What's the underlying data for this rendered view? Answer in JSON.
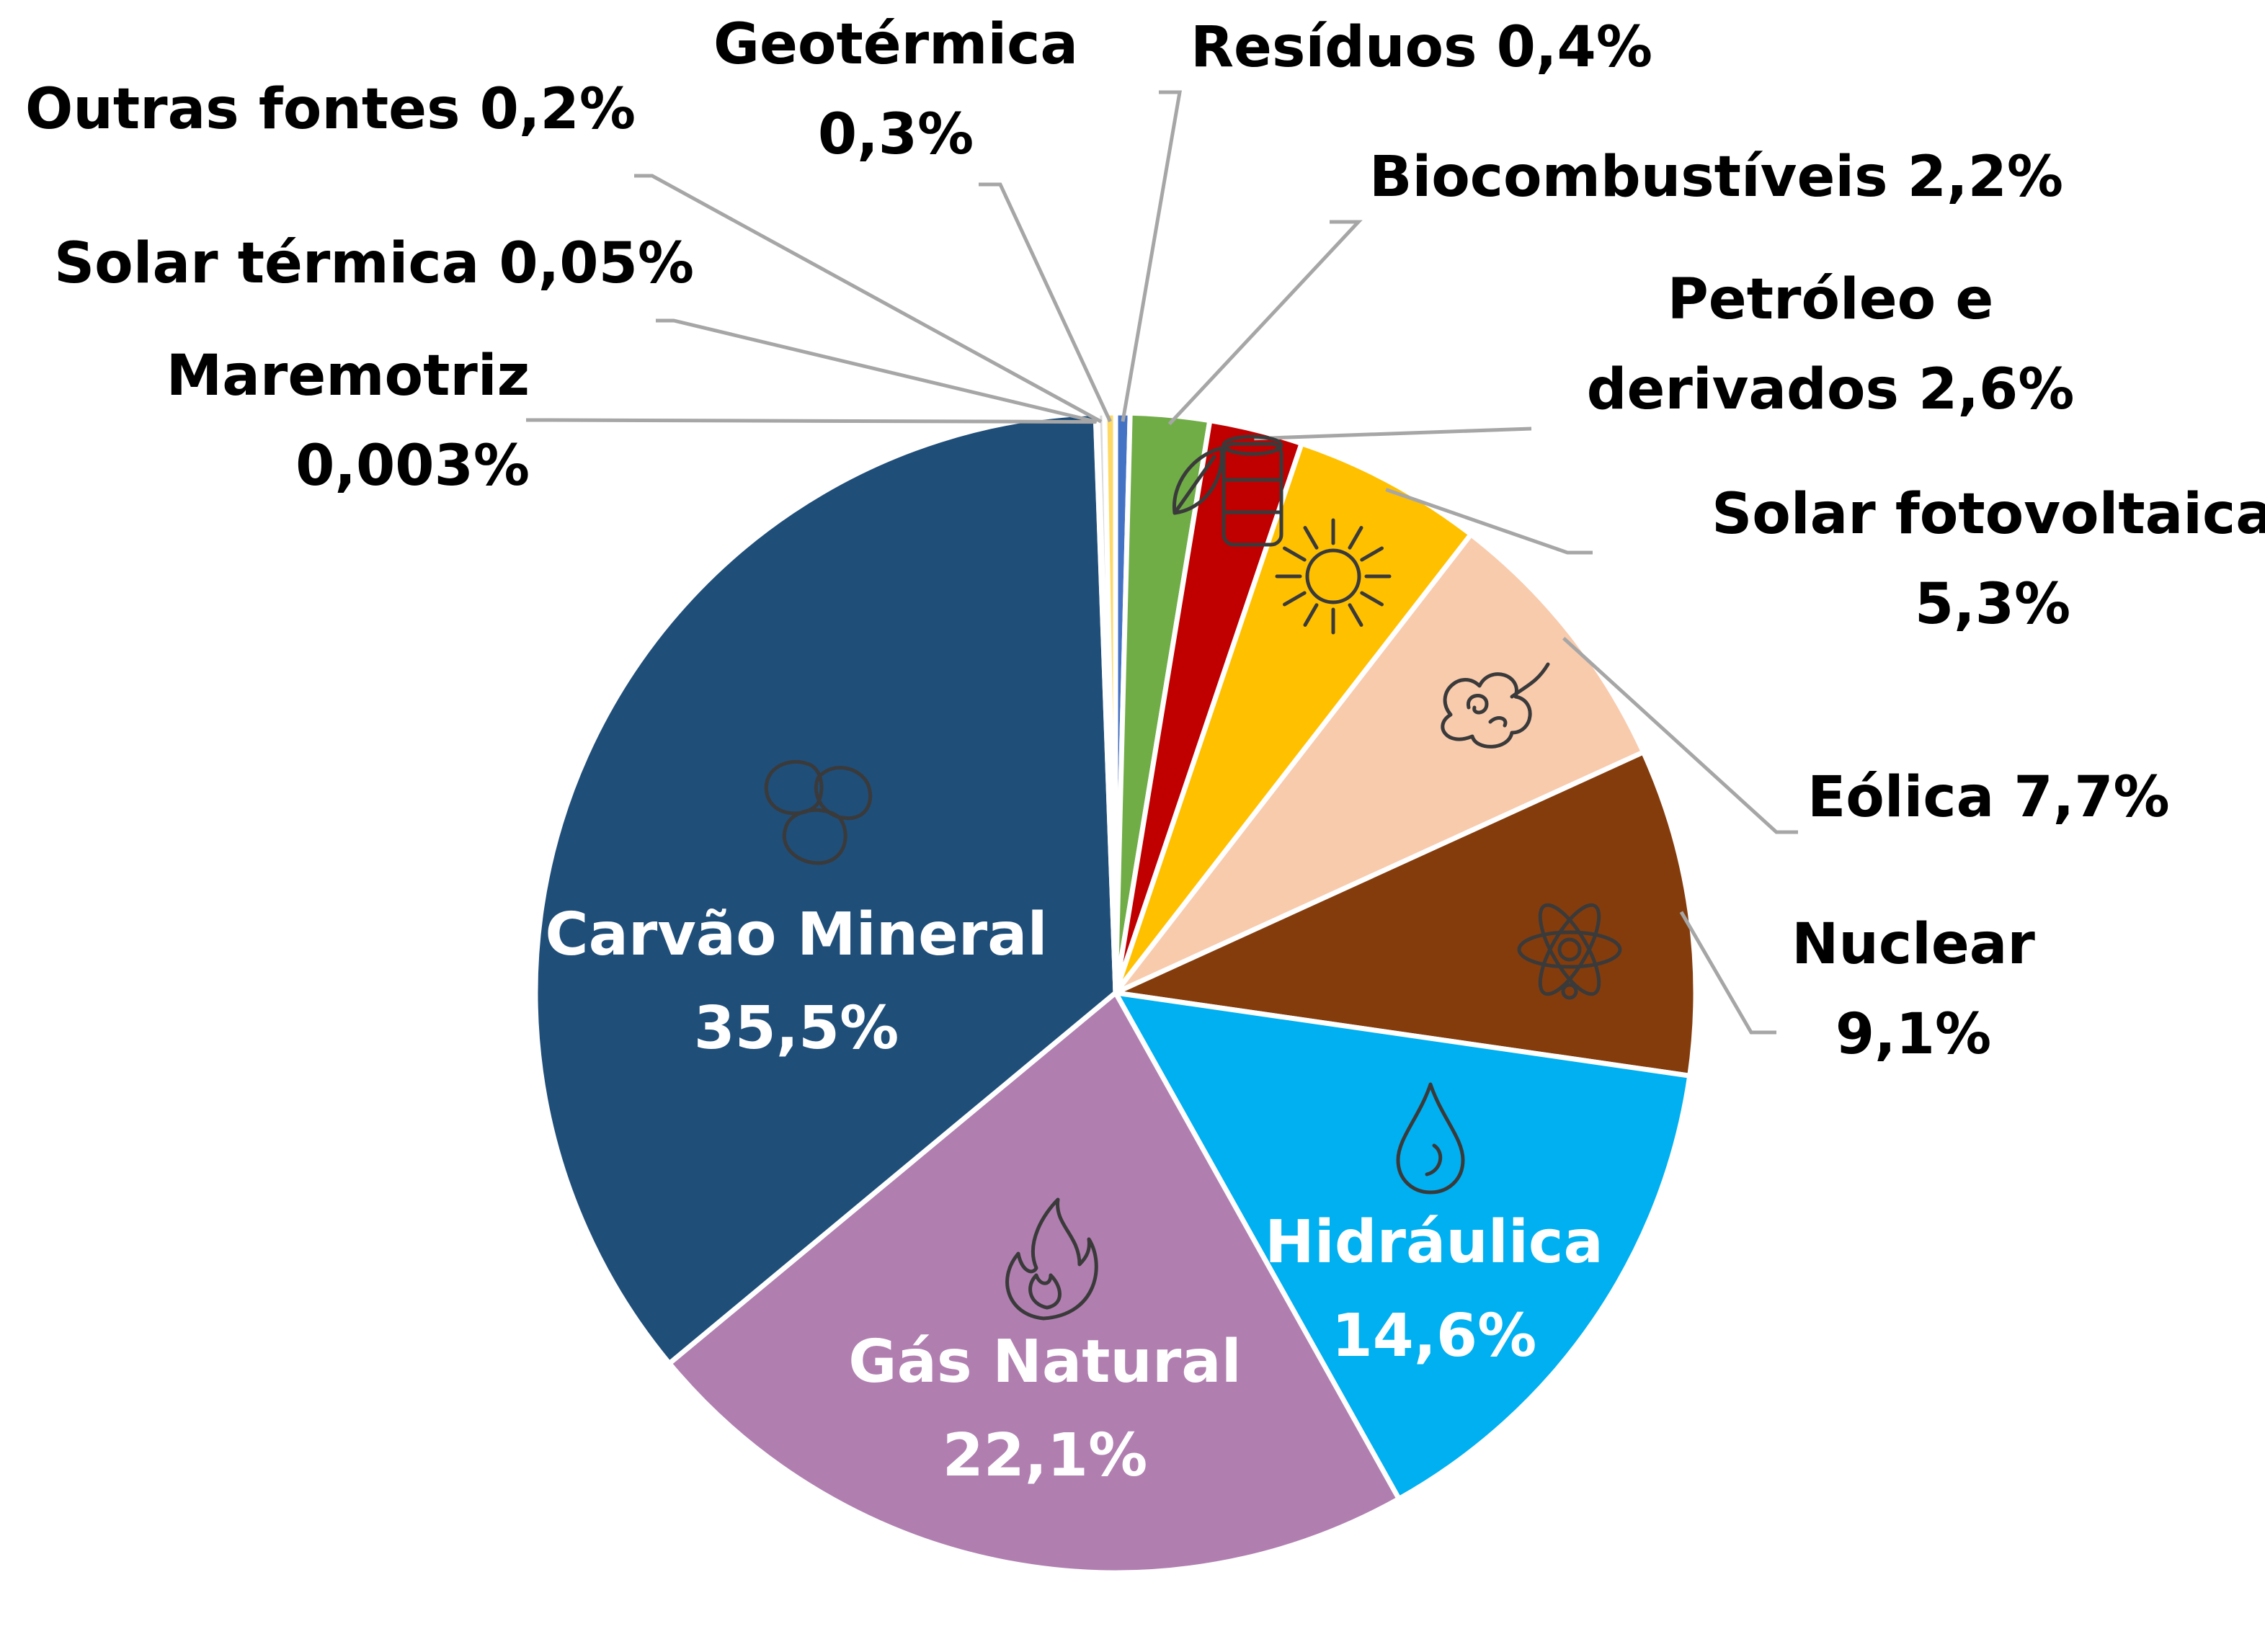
{
  "chart_data": {
    "type": "pie",
    "start_angle": "12 o'clock, clockwise",
    "slices": [
      {
        "name": "Resíduos",
        "value": 0.4,
        "label": "0,4%",
        "color": "#4472c4",
        "label_position": "outside"
      },
      {
        "name": "Biocombustíveis",
        "value": 2.2,
        "label": "2,2%",
        "color": "#70ad47",
        "label_position": "outside",
        "icon": "leaf-icon"
      },
      {
        "name": "Petróleo e derivados",
        "value": 2.6,
        "label": "2,6%",
        "color": "#c00000",
        "label_position": "outside",
        "icon": "barrel-icon"
      },
      {
        "name": "Solar fotovoltaica",
        "value": 5.3,
        "label": "5,3%",
        "color": "#ffc000",
        "label_position": "outside",
        "icon": "sun-icon"
      },
      {
        "name": "Eólica",
        "value": 7.7,
        "label": "7,7%",
        "color": "#f8cbad",
        "label_position": "outside",
        "icon": "wind-icon"
      },
      {
        "name": "Nuclear",
        "value": 9.1,
        "label": "9,1%",
        "color": "#843c0c",
        "label_position": "outside",
        "icon": "atom-icon"
      },
      {
        "name": "Hidráulica",
        "value": 14.6,
        "label": "14,6%",
        "color": "#00b0f0",
        "label_position": "inside",
        "icon": "water-drop-icon"
      },
      {
        "name": "Gás Natural",
        "value": 22.1,
        "label": "22,1%",
        "color": "#b07fb0",
        "label_position": "inside",
        "icon": "flame-icon"
      },
      {
        "name": "Carvão Mineral",
        "value": 35.5,
        "label": "35,5%",
        "color": "#1f4e79",
        "label_position": "inside",
        "icon": "coal-icon"
      },
      {
        "name": "Maremotriz",
        "value": 0.003,
        "label": "0,003%",
        "color": "#a5a5a5",
        "label_position": "outside"
      },
      {
        "name": "Solar térmica",
        "value": 0.05,
        "label": "0,05%",
        "color": "#ed7d31",
        "label_position": "outside"
      },
      {
        "name": "Outras fontes",
        "value": 0.2,
        "label": "0,2%",
        "color": "#d9d9d9",
        "label_position": "outside"
      },
      {
        "name": "Geotérmica",
        "value": 0.3,
        "label": "0,3%",
        "color": "#ffd966",
        "label_position": "outside"
      }
    ]
  }
}
